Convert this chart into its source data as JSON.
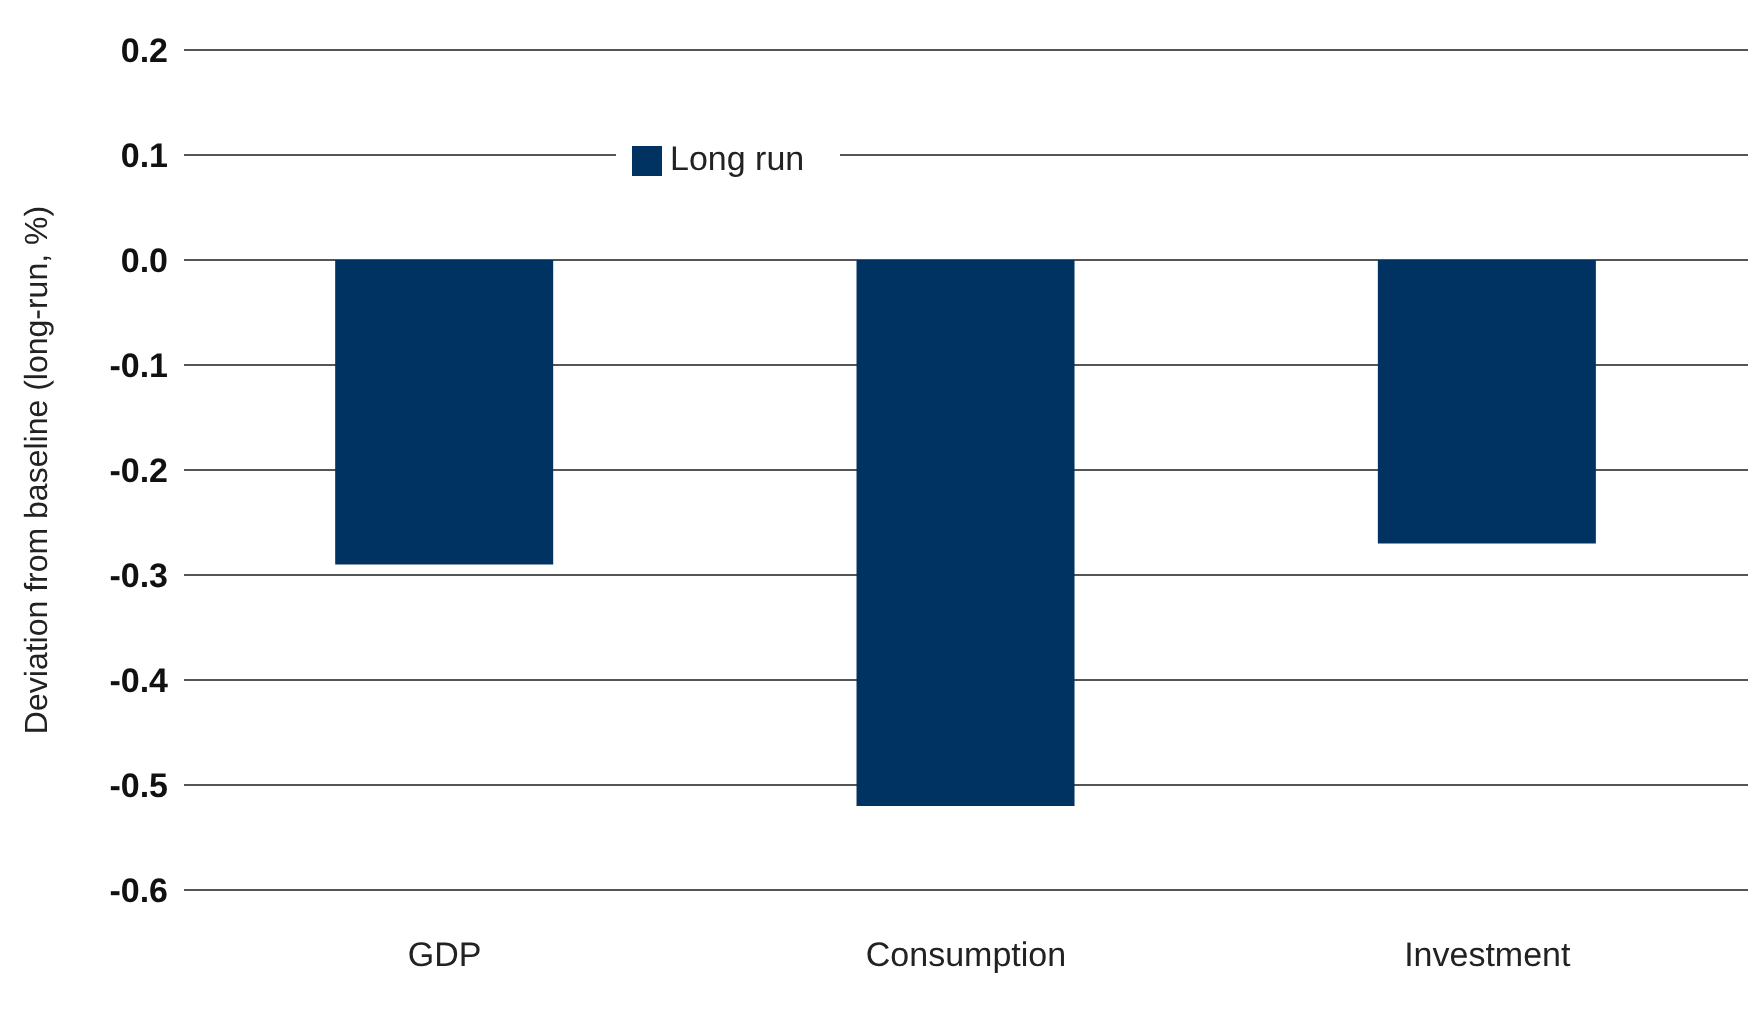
{
  "chart_data": {
    "type": "bar",
    "categories": [
      "GDP",
      "Consumption",
      "Investment"
    ],
    "series": [
      {
        "name": "Long run",
        "color": "#003262",
        "values": [
          -0.29,
          -0.52,
          -0.27
        ]
      }
    ],
    "ylabel": "Deviation from baseline (long-run, %)",
    "ylim": [
      -0.6,
      0.2
    ],
    "yticks": [
      {
        "value": -0.6,
        "label": "-0.6"
      },
      {
        "value": -0.5,
        "label": "-0.5"
      },
      {
        "value": -0.4,
        "label": "-0.4"
      },
      {
        "value": -0.3,
        "label": "-0.3"
      },
      {
        "value": -0.2,
        "label": "-0.2"
      },
      {
        "value": -0.1,
        "label": "-0.1"
      },
      {
        "value": 0,
        "label": "0.0"
      },
      {
        "value": 0.1,
        "label": "0.1"
      },
      {
        "value": 0.2,
        "label": "0.2"
      }
    ],
    "grid": "y",
    "legend": "top"
  }
}
